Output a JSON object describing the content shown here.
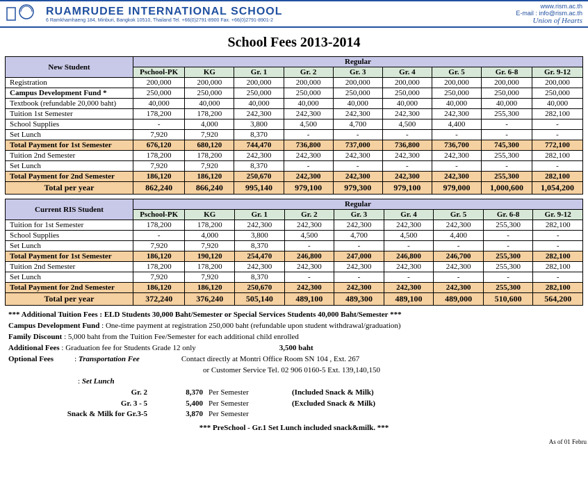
{
  "header": {
    "school": "RUAMRUDEE INTERNATIONAL SCHOOL",
    "addr": "6 Ramkhamhaeng 184, Minburi, Bangkok 10510, Thailand Tel. +66(0)2791-8900 Fax. +66(0)2791-8901-2",
    "web": "www.rism.ac.th",
    "email": "E-mail : info@rism.ac.th",
    "motto": "Union of Hearts"
  },
  "title": "School Fees 2013-2014",
  "cols": [
    "Pschool-PK",
    "KG",
    "Gr. 1",
    "Gr. 2",
    "Gr. 3",
    "Gr. 4",
    "Gr. 5",
    "Gr. 6-8",
    "Gr. 9-12"
  ],
  "t1": {
    "label": "New Student",
    "group": "Regular",
    "rows": [
      {
        "l": "Registration",
        "v": [
          "200,000",
          "200,000",
          "200,000",
          "200,000",
          "200,000",
          "200,000",
          "200,000",
          "200,000",
          "200,000"
        ]
      },
      {
        "l": "Campus Development Fund *",
        "b": 1,
        "v": [
          "250,000",
          "250,000",
          "250,000",
          "250,000",
          "250,000",
          "250,000",
          "250,000",
          "250,000",
          "250,000"
        ]
      },
      {
        "l": "Textbook (refundable 20,000 baht)",
        "v": [
          "40,000",
          "40,000",
          "40,000",
          "40,000",
          "40,000",
          "40,000",
          "40,000",
          "40,000",
          "40,000"
        ]
      },
      {
        "l": "Tuition 1st Semester",
        "v": [
          "178,200",
          "178,200",
          "242,300",
          "242,300",
          "242,300",
          "242,300",
          "242,300",
          "255,300",
          "282,100"
        ]
      },
      {
        "l": "School Supplies",
        "v": [
          "-",
          "4,000",
          "3,800",
          "4,500",
          "4,700",
          "4,500",
          "4,400",
          "-",
          "-"
        ]
      },
      {
        "l": "Set Lunch",
        "v": [
          "7,920",
          "7,920",
          "8,370",
          "-",
          "-",
          "-",
          "-",
          "-",
          "-"
        ]
      },
      {
        "l": "Total Payment for 1st Semester",
        "t": 1,
        "v": [
          "676,120",
          "680,120",
          "744,470",
          "736,800",
          "737,000",
          "736,800",
          "736,700",
          "745,300",
          "772,100"
        ]
      },
      {
        "l": "Tuition 2nd Semester",
        "v": [
          "178,200",
          "178,200",
          "242,300",
          "242,300",
          "242,300",
          "242,300",
          "242,300",
          "255,300",
          "282,100"
        ]
      },
      {
        "l": "Set Lunch",
        "v": [
          "7,920",
          "7,920",
          "8,370",
          "-",
          "-",
          "-",
          "-",
          "-",
          "-"
        ]
      },
      {
        "l": "Total Payment for 2nd Semester",
        "t": 1,
        "v": [
          "186,120",
          "186,120",
          "250,670",
          "242,300",
          "242,300",
          "242,300",
          "242,300",
          "255,300",
          "282,100"
        ]
      },
      {
        "l": "Total per year",
        "ty": 1,
        "v": [
          "862,240",
          "866,240",
          "995,140",
          "979,100",
          "979,300",
          "979,100",
          "979,000",
          "1,000,600",
          "1,054,200"
        ]
      }
    ]
  },
  "t2": {
    "label": "Current RIS Student",
    "group": "Regular",
    "rows": [
      {
        "l": "Tuition for 1st Semester",
        "v": [
          "178,200",
          "178,200",
          "242,300",
          "242,300",
          "242,300",
          "242,300",
          "242,300",
          "255,300",
          "282,100"
        ]
      },
      {
        "l": "School Supplies",
        "v": [
          "-",
          "4,000",
          "3,800",
          "4,500",
          "4,700",
          "4,500",
          "4,400",
          "-",
          "-"
        ]
      },
      {
        "l": "Set Lunch",
        "v": [
          "7,920",
          "7,920",
          "8,370",
          "-",
          "-",
          "-",
          "-",
          "-",
          "-"
        ]
      },
      {
        "l": "Total Payment for 1st Semester",
        "t": 1,
        "v": [
          "186,120",
          "190,120",
          "254,470",
          "246,800",
          "247,000",
          "246,800",
          "246,700",
          "255,300",
          "282,100"
        ]
      },
      {
        "l": "Tuition 2nd Semester",
        "v": [
          "178,200",
          "178,200",
          "242,300",
          "242,300",
          "242,300",
          "242,300",
          "242,300",
          "255,300",
          "282,100"
        ]
      },
      {
        "l": "Set Lunch",
        "v": [
          "7,920",
          "7,920",
          "8,370",
          "-",
          "-",
          "-",
          "-",
          "-",
          "-"
        ]
      },
      {
        "l": "Total Payment for 2nd Semester",
        "t": 1,
        "v": [
          "186,120",
          "186,120",
          "250,670",
          "242,300",
          "242,300",
          "242,300",
          "242,300",
          "255,300",
          "282,100"
        ]
      },
      {
        "l": "Total per year",
        "ty": 1,
        "v": [
          "372,240",
          "376,240",
          "505,140",
          "489,100",
          "489,300",
          "489,100",
          "489,000",
          "510,600",
          "564,200"
        ]
      }
    ]
  },
  "notes": {
    "addl_tuition": "*** Additional Tuition Fees : ELD Students 30,000 Baht/Semester or Special Services Students 40,000 Baht/Semester ***",
    "cdf_l": "Campus Development Fund",
    "cdf_t": " : One-time payment at registration 250,000 baht (refundable upon student withdrawal/graduation)",
    "fam_l": "Family Discount",
    "fam_t": " :  5,000 baht from the Tuition Fee/Semester for each additional child enrolled",
    "add_l": "Additional Fees",
    "add_t": "   : Graduation fee for Students Grade 12 only",
    "add_amt": "3,500  baht",
    "opt_l": "Optional Fees",
    "opt_i": "Transportation Fee",
    "opt_t": "Contact directly at Montri Office Room SN 104 , Ext. 267",
    "opt_t2": "or Customer Service Tel. 02 906 0160-5 Ext. 139,140,150",
    "setlunch": "Set Lunch",
    "lunch": [
      {
        "g": "Gr. 2",
        "a": "8,370",
        "p": "Per Semester",
        "n": "(Included Snack & Milk)"
      },
      {
        "g": "Gr. 3 - 5",
        "a": "5,400",
        "p": "Per Semester",
        "n": "(Excluded Snack & Milk)"
      },
      {
        "g": "Snack & Milk for Gr.3-5",
        "a": "3,870",
        "p": "Per Semester",
        "n": ""
      }
    ],
    "ps": "*** PreSchool - Gr.1 Set Lunch included snack&milk. ***",
    "asof": "As of 01 Febru"
  }
}
